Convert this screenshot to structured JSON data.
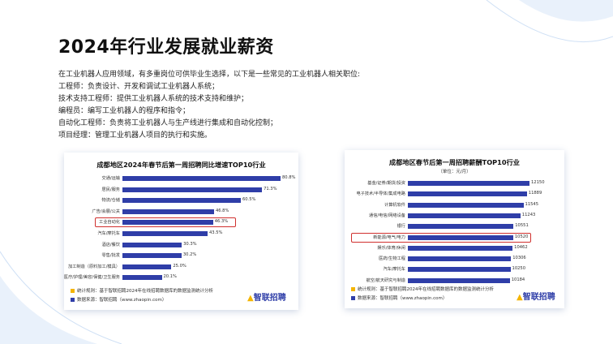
{
  "page": {
    "title": "2024年行业发展就业薪资",
    "paragraph": [
      "在工业机器人应用领域，有多重岗位可供毕业生选择，以下是一些常见的工业机器人相关职位:",
      "工程师：负责设计、开发和调试工业机器人系统；",
      "技术支持工程师：提供工业机器人系统的技术支持和维护；",
      "编程员：编写工业机器人的程序和指令；",
      "自动化工程师：负责将工业机器人与生产线进行集成和自动化控制；",
      "项目经理：管理工业机器人项目的执行和实施。"
    ]
  },
  "left_footer": {
    "rule": "统计规则：基于智联招聘2024年在线招聘数据库的数据监测统计分析",
    "source": "数据来源：智联招聘（www.zhaopin.com）",
    "logo": "智联招聘"
  },
  "right_footer": {
    "rule": "统计规则：基于智联招聘2024年在线招聘数据库的数据监测统计分析",
    "source": "数据来源：智联招聘（www.zhaopin.com）",
    "logo": "智联招聘"
  },
  "colors": {
    "bar": "#2f3ea8",
    "highlight": "#d0302e",
    "logo": "#2f3ea8",
    "accent_square": "#f4b400"
  },
  "chart_data": [
    {
      "type": "bar",
      "orientation": "horizontal",
      "title": "成都地区2024年春节后第一周招聘同比增速TOP10行业",
      "categories": [
        "交通/运输",
        "居民/服务",
        "物流/仓储",
        "广告/会展/公关",
        "工业自动化",
        "汽车/摩托车",
        "酒店/餐饮",
        "零售/批发",
        "加工制造（原料加工/模具）",
        "医疗/护理/美容/保健/卫生服务"
      ],
      "values": [
        80.8,
        71.3,
        60.5,
        46.8,
        46.3,
        43.5,
        30.3,
        30.2,
        25.0,
        20.1
      ],
      "labels": [
        "80.8%",
        "71.3%",
        "60.5%",
        "46.8%",
        "46.3%",
        "43.5%",
        "30.3%",
        "30.2%",
        "25.0%",
        "20.1%"
      ],
      "highlighted": "工业自动化",
      "xlim": [
        0,
        80.8
      ]
    },
    {
      "type": "bar",
      "orientation": "horizontal",
      "title": "成都地区春节后第一周招聘薪酬TOP10行业",
      "unit": "（单位：元/月）",
      "categories": [
        "基金/证券/期货/投资",
        "电子技术/半导体/集成电路",
        "计算机软件",
        "通信/电信/网络设备",
        "银行",
        "新能源/电气/电力",
        "娱乐/体育/休闲",
        "医药/生物工程",
        "汽车/摩托车",
        "航空/航天研究与制造"
      ],
      "values": [
        12150,
        11889,
        11545,
        11243,
        10551,
        10520,
        10462,
        10306,
        10250,
        10184
      ],
      "labels": [
        "12150",
        "11889",
        "11545",
        "11243",
        "10551",
        "10520",
        "10462",
        "10306",
        "10250",
        "10184"
      ],
      "highlighted": "新能源/电气/电力",
      "xlim": [
        0,
        12150
      ]
    }
  ]
}
